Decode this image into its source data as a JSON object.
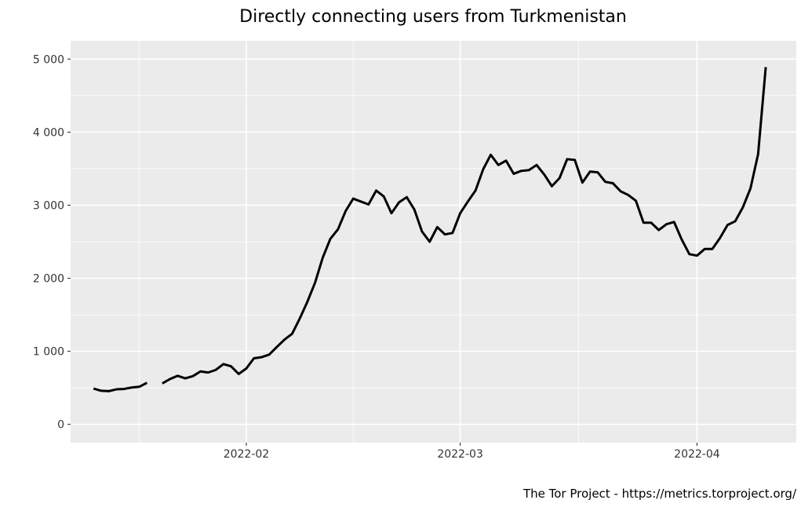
{
  "chart_data": {
    "type": "line",
    "title": "Directly connecting users from Turkmenistan",
    "caption": "The Tor Project - https://metrics.torproject.org/",
    "xlabel": "",
    "ylabel": "",
    "xlim": [
      "2022-01-09",
      "2022-04-14"
    ],
    "ylim": [
      -250,
      5250
    ],
    "x_ticks": [
      "2022-02-01",
      "2022-03-01",
      "2022-04-01"
    ],
    "x_tick_labels": [
      "2022-02",
      "2022-03",
      "2022-04"
    ],
    "y_ticks": [
      0,
      1000,
      2000,
      3000,
      4000,
      5000
    ],
    "y_tick_labels": [
      "0",
      "1 000",
      "2 000",
      "3 000",
      "4 000",
      "5 000"
    ],
    "grid": true,
    "legend": "none",
    "colors": {
      "panel": "#ebebeb",
      "grid": "#ffffff",
      "line": "#000000"
    },
    "series": [
      {
        "segments": [
          [
            [
              "2022-01-12",
              490
            ],
            [
              "2022-01-13",
              460
            ],
            [
              "2022-01-14",
              455
            ],
            [
              "2022-01-15",
              480
            ],
            [
              "2022-01-16",
              485
            ],
            [
              "2022-01-17",
              505
            ],
            [
              "2022-01-18",
              515
            ],
            [
              "2022-01-19",
              570
            ]
          ],
          [
            [
              "2022-01-21",
              560
            ],
            [
              "2022-01-22",
              620
            ],
            [
              "2022-01-23",
              665
            ],
            [
              "2022-01-24",
              630
            ],
            [
              "2022-01-25",
              660
            ],
            [
              "2022-01-26",
              725
            ],
            [
              "2022-01-27",
              710
            ],
            [
              "2022-01-28",
              745
            ],
            [
              "2022-01-29",
              825
            ],
            [
              "2022-01-30",
              795
            ],
            [
              "2022-01-31",
              690
            ],
            [
              "2022-02-01",
              765
            ],
            [
              "2022-02-02",
              905
            ],
            [
              "2022-02-03",
              920
            ],
            [
              "2022-02-04",
              955
            ],
            [
              "2022-02-05",
              1060
            ],
            [
              "2022-02-06",
              1160
            ],
            [
              "2022-02-07",
              1240
            ],
            [
              "2022-02-08",
              1450
            ],
            [
              "2022-02-09",
              1680
            ],
            [
              "2022-02-10",
              1940
            ],
            [
              "2022-02-11",
              2280
            ],
            [
              "2022-02-12",
              2540
            ],
            [
              "2022-02-13",
              2670
            ],
            [
              "2022-02-14",
              2920
            ],
            [
              "2022-02-15",
              3090
            ],
            [
              "2022-02-16",
              3050
            ],
            [
              "2022-02-17",
              3010
            ],
            [
              "2022-02-18",
              3200
            ],
            [
              "2022-02-19",
              3120
            ],
            [
              "2022-02-20",
              2890
            ],
            [
              "2022-02-21",
              3040
            ],
            [
              "2022-02-22",
              3110
            ],
            [
              "2022-02-23",
              2940
            ],
            [
              "2022-02-24",
              2640
            ],
            [
              "2022-02-25",
              2500
            ],
            [
              "2022-02-26",
              2700
            ],
            [
              "2022-02-27",
              2600
            ],
            [
              "2022-02-28",
              2620
            ],
            [
              "2022-03-01",
              2890
            ],
            [
              "2022-03-02",
              3050
            ],
            [
              "2022-03-03",
              3200
            ],
            [
              "2022-03-04",
              3490
            ],
            [
              "2022-03-05",
              3690
            ],
            [
              "2022-03-06",
              3550
            ],
            [
              "2022-03-07",
              3610
            ],
            [
              "2022-03-08",
              3430
            ],
            [
              "2022-03-09",
              3470
            ],
            [
              "2022-03-10",
              3480
            ],
            [
              "2022-03-11",
              3550
            ],
            [
              "2022-03-12",
              3420
            ],
            [
              "2022-03-13",
              3260
            ],
            [
              "2022-03-14",
              3370
            ],
            [
              "2022-03-15",
              3630
            ],
            [
              "2022-03-16",
              3620
            ],
            [
              "2022-03-17",
              3310
            ],
            [
              "2022-03-18",
              3460
            ],
            [
              "2022-03-19",
              3450
            ],
            [
              "2022-03-20",
              3320
            ],
            [
              "2022-03-21",
              3300
            ],
            [
              "2022-03-22",
              3190
            ],
            [
              "2022-03-23",
              3140
            ],
            [
              "2022-03-24",
              3060
            ],
            [
              "2022-03-25",
              2760
            ],
            [
              "2022-03-26",
              2760
            ],
            [
              "2022-03-27",
              2660
            ],
            [
              "2022-03-28",
              2740
            ],
            [
              "2022-03-29",
              2770
            ],
            [
              "2022-03-30",
              2530
            ],
            [
              "2022-03-31",
              2330
            ],
            [
              "2022-04-01",
              2310
            ],
            [
              "2022-04-02",
              2400
            ],
            [
              "2022-04-03",
              2400
            ],
            [
              "2022-04-04",
              2550
            ],
            [
              "2022-04-05",
              2730
            ],
            [
              "2022-04-06",
              2780
            ],
            [
              "2022-04-07",
              2970
            ],
            [
              "2022-04-08",
              3230
            ],
            [
              "2022-04-09",
              3700
            ],
            [
              "2022-04-10",
              4890
            ]
          ]
        ]
      }
    ]
  }
}
